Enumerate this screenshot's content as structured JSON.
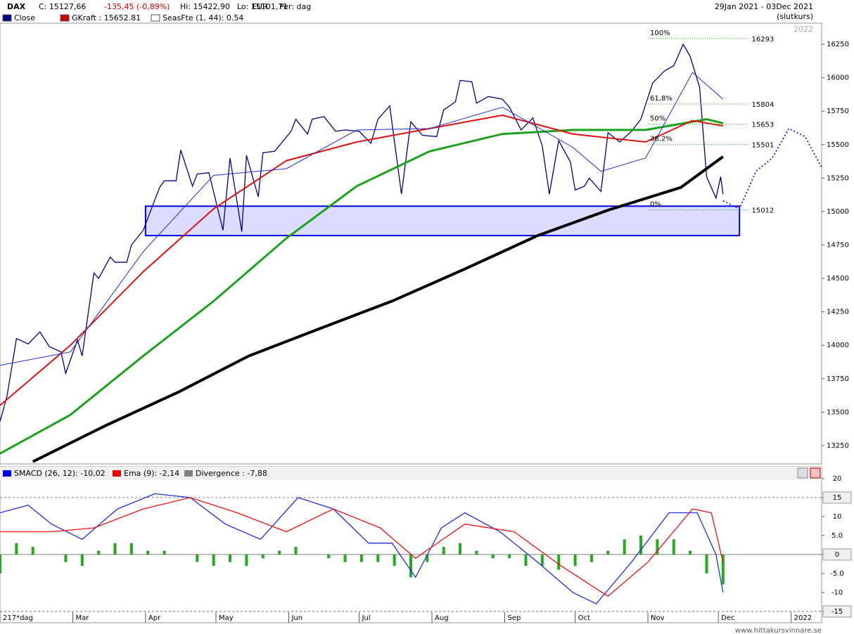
{
  "header": {
    "symbol": "DAX",
    "close": "C: 15127,66",
    "change": "-135,45 (-0,89%)",
    "high": "Hi: 15422,90",
    "low": "Lo: 15101,71",
    "currency": "EUR",
    "period": "Per: dag",
    "range": "29Jan 2021 - 03Dec 2021",
    "mode": "(slutkurs)",
    "year": "2022",
    "footer": "www.hittakursvinnare.se",
    "legend": [
      {
        "label": "Close",
        "color": "#000080"
      },
      {
        "label": "GKraft : 15652.81",
        "color": "#cc0000"
      },
      {
        "label": "SeasFte (1, 44): 0.54",
        "color": "#ffffff"
      }
    ]
  },
  "chart_data": [
    {
      "type": "line",
      "xlim": [
        "2021-01-29",
        "2022-01-14"
      ],
      "ylim": [
        13113,
        16408
      ],
      "xticks": [
        {
          "value": "2021-01-29",
          "label": "217*dag"
        },
        {
          "value": "2021-03-01",
          "label": "Mar"
        },
        {
          "value": "2021-04-01",
          "label": "Apr"
        },
        {
          "value": "2021-05-01",
          "label": "May"
        },
        {
          "value": "2021-06-01",
          "label": "Jun"
        },
        {
          "value": "2021-07-01",
          "label": "Jul"
        },
        {
          "value": "2021-08-01",
          "label": "Aug"
        },
        {
          "value": "2021-09-01",
          "label": "Sep"
        },
        {
          "value": "2021-10-01",
          "label": "Oct"
        },
        {
          "value": "2021-11-01",
          "label": "Nov"
        },
        {
          "value": "2021-12-01",
          "label": "Dec"
        },
        {
          "value": "2022-01-01",
          "label": "2022"
        }
      ],
      "yticks": [
        13250,
        13500,
        13750,
        14000,
        14250,
        14500,
        14750,
        15000,
        15250,
        15500,
        15750,
        16000,
        16250
      ],
      "series": [
        {
          "name": "Close",
          "color": "#000080",
          "x": [
            "2021-01-29",
            "2021-02-01",
            "2021-02-05",
            "2021-02-10",
            "2021-02-15",
            "2021-02-19",
            "2021-02-24",
            "2021-02-26",
            "2021-03-03",
            "2021-03-05",
            "2021-03-10",
            "2021-03-12",
            "2021-03-17",
            "2021-03-19",
            "2021-03-24",
            "2021-03-26",
            "2021-03-31",
            "2021-04-07",
            "2021-04-09",
            "2021-04-14",
            "2021-04-16",
            "2021-04-21",
            "2021-04-23",
            "2021-04-28",
            "2021-05-04",
            "2021-05-07",
            "2021-05-12",
            "2021-05-14",
            "2021-05-19",
            "2021-05-21",
            "2021-05-26",
            "2021-06-02",
            "2021-06-04",
            "2021-06-09",
            "2021-06-11",
            "2021-06-16",
            "2021-06-21",
            "2021-06-25",
            "2021-07-01",
            "2021-07-06",
            "2021-07-09",
            "2021-07-14",
            "2021-07-19",
            "2021-07-23",
            "2021-07-28",
            "2021-08-03",
            "2021-08-06",
            "2021-08-11",
            "2021-08-13",
            "2021-08-18",
            "2021-08-20",
            "2021-08-25",
            "2021-08-31",
            "2021-09-03",
            "2021-09-08",
            "2021-09-13",
            "2021-09-17",
            "2021-09-20",
            "2021-09-24",
            "2021-09-29",
            "2021-10-01",
            "2021-10-05",
            "2021-10-07",
            "2021-10-12",
            "2021-10-15",
            "2021-10-20",
            "2021-10-25",
            "2021-10-29",
            "2021-11-03",
            "2021-11-08",
            "2021-11-12",
            "2021-11-16",
            "2021-11-19",
            "2021-11-23",
            "2021-11-26",
            "2021-11-30",
            "2021-12-02",
            "2021-12-03"
          ],
          "values": [
            13430,
            13620,
            14050,
            14010,
            14100,
            13990,
            13950,
            13790,
            14040,
            13920,
            14540,
            14500,
            14660,
            14620,
            14620,
            14750,
            14860,
            15180,
            15230,
            15230,
            15460,
            15190,
            15280,
            15290,
            14860,
            15400,
            14850,
            15420,
            15110,
            15440,
            15450,
            15600,
            15690,
            15580,
            15690,
            15710,
            15600,
            15610,
            15600,
            15510,
            15690,
            15790,
            15130,
            15670,
            15570,
            15560,
            15760,
            15820,
            15980,
            15970,
            15810,
            15860,
            15840,
            15780,
            15610,
            15700,
            15490,
            15130,
            15530,
            15370,
            15160,
            15190,
            15250,
            15150,
            15590,
            15520,
            15600,
            15690,
            15960,
            16050,
            16090,
            16250,
            16160,
            15930,
            15260,
            15100,
            15260,
            15130
          ]
        },
        {
          "color": "#000000",
          "width": 4,
          "x": [
            "2021-02-12",
            "2021-03-15",
            "2021-04-15",
            "2021-05-15",
            "2021-06-15",
            "2021-07-15",
            "2021-08-15",
            "2021-09-15",
            "2021-10-15",
            "2021-11-15",
            "2021-12-03"
          ],
          "values": [
            13130,
            13400,
            13650,
            13920,
            14130,
            14330,
            14570,
            14820,
            15010,
            15180,
            15410
          ]
        },
        {
          "color": "#1aa31a",
          "width": 3,
          "x": [
            "2021-01-29",
            "2021-02-28",
            "2021-03-31",
            "2021-04-30",
            "2021-05-31",
            "2021-06-30",
            "2021-07-31",
            "2021-08-31",
            "2021-09-30",
            "2021-10-31",
            "2021-11-26",
            "2021-12-03"
          ],
          "values": [
            13190,
            13480,
            13920,
            14330,
            14800,
            15190,
            15450,
            15580,
            15610,
            15610,
            15690,
            15660
          ]
        },
        {
          "color": "#e01010",
          "width": 2,
          "x": [
            "2021-01-29",
            "2021-02-28",
            "2021-03-31",
            "2021-04-30",
            "2021-05-31",
            "2021-06-30",
            "2021-07-31",
            "2021-08-31",
            "2021-09-30",
            "2021-10-31",
            "2021-11-20",
            "2021-12-03"
          ],
          "values": [
            13550,
            14000,
            14550,
            15020,
            15380,
            15520,
            15620,
            15720,
            15580,
            15520,
            15680,
            15640
          ]
        },
        {
          "color": "#2030d0",
          "width": 1,
          "x": [
            "2021-01-29",
            "2021-02-28",
            "2021-03-31",
            "2021-04-30",
            "2021-05-31",
            "2021-06-30",
            "2021-07-31",
            "2021-08-31",
            "2021-09-30",
            "2021-10-12",
            "2021-10-31",
            "2021-11-20",
            "2021-12-03"
          ],
          "values": [
            13850,
            13950,
            14700,
            15270,
            15320,
            15610,
            15620,
            15780,
            15480,
            15300,
            15400,
            16040,
            15840
          ]
        },
        {
          "color": "#2030d0",
          "width": 2,
          "dash": true,
          "x": [
            "2021-12-03",
            "2021-12-10",
            "2021-12-17",
            "2021-12-24",
            "2021-12-31",
            "2022-01-07",
            "2022-01-14"
          ],
          "values": [
            15080,
            15020,
            15300,
            15400,
            15620,
            15560,
            15330
          ]
        }
      ],
      "zone": {
        "from": "2021-04-01",
        "to": "2021-12-10",
        "low": 14820,
        "high": 15040
      },
      "fib": {
        "from": "2021-11-01",
        "to": "2021-12-14",
        "levels": [
          {
            "label": "100%",
            "value": 16293
          },
          {
            "label": "61,8%",
            "value": 15804
          },
          {
            "label": "50%",
            "value": 15653
          },
          {
            "label": "38,2%",
            "value": 15501
          },
          {
            "label": "0%",
            "value": 15012
          }
        ]
      }
    },
    {
      "type": "macd",
      "xlim": [
        "2021-01-29",
        "2022-01-14"
      ],
      "ylim": [
        -15.2,
        19.6
      ],
      "legend": [
        {
          "label": "SMACD (26, 12): -10,02",
          "color": "#0000ee"
        },
        {
          "label": "Ema (9): -2,14",
          "color": "#ee0000"
        },
        {
          "label": "Divergence : -7,88",
          "color": "#808080"
        }
      ],
      "yticks": [
        20,
        15,
        10,
        {
          "value": 5,
          "label": "5.0"
        },
        0,
        {
          "value": -5,
          "label": "-5.0"
        },
        -10,
        -15
      ],
      "boxed": [
        15,
        0,
        -15
      ],
      "series": [
        {
          "color": "#2030e0",
          "x": [
            "2021-01-29",
            "2021-02-10",
            "2021-02-20",
            "2021-03-05",
            "2021-03-20",
            "2021-04-05",
            "2021-04-20",
            "2021-05-05",
            "2021-05-20",
            "2021-06-05",
            "2021-06-20",
            "2021-07-05",
            "2021-07-15",
            "2021-07-25",
            "2021-08-05",
            "2021-08-15",
            "2021-08-30",
            "2021-09-15",
            "2021-09-30",
            "2021-10-10",
            "2021-10-25",
            "2021-11-10",
            "2021-11-22",
            "2021-11-30",
            "2021-12-03"
          ],
          "values": [
            11,
            13,
            8,
            4,
            12,
            16,
            15,
            8,
            4,
            15,
            12,
            3,
            3,
            -6,
            7,
            11,
            6,
            -2,
            -10,
            -13,
            -2,
            11,
            11,
            0,
            -10
          ]
        },
        {
          "color": "#ee1010",
          "x": [
            "2021-01-29",
            "2021-02-20",
            "2021-03-10",
            "2021-03-31",
            "2021-04-20",
            "2021-05-10",
            "2021-05-31",
            "2021-06-20",
            "2021-07-10",
            "2021-07-25",
            "2021-08-15",
            "2021-09-05",
            "2021-09-25",
            "2021-10-15",
            "2021-11-01",
            "2021-11-20",
            "2021-11-28",
            "2021-12-03"
          ],
          "values": [
            6,
            6,
            7,
            12,
            15,
            11,
            6,
            12,
            7,
            -1,
            8,
            6,
            -3,
            -11,
            -2,
            12,
            11,
            -2
          ]
        }
      ],
      "histogram": {
        "color": "#22aa22",
        "x": [
          "2021-01-29",
          "2021-02-05",
          "2021-02-12",
          "2021-02-19",
          "2021-02-26",
          "2021-03-05",
          "2021-03-12",
          "2021-03-19",
          "2021-03-26",
          "2021-04-02",
          "2021-04-09",
          "2021-04-16",
          "2021-04-23",
          "2021-04-30",
          "2021-05-07",
          "2021-05-14",
          "2021-05-21",
          "2021-05-28",
          "2021-06-04",
          "2021-06-11",
          "2021-06-18",
          "2021-06-25",
          "2021-07-02",
          "2021-07-09",
          "2021-07-16",
          "2021-07-23",
          "2021-07-30",
          "2021-08-06",
          "2021-08-13",
          "2021-08-20",
          "2021-08-27",
          "2021-09-03",
          "2021-09-10",
          "2021-09-17",
          "2021-09-24",
          "2021-10-01",
          "2021-10-08",
          "2021-10-15",
          "2021-10-22",
          "2021-10-29",
          "2021-11-05",
          "2021-11-12",
          "2021-11-19",
          "2021-11-26",
          "2021-12-03"
        ],
        "values": [
          -5,
          3,
          2,
          0,
          -2,
          -3,
          1,
          3,
          3,
          1,
          1,
          0,
          -2,
          -3,
          -2,
          -3,
          -1,
          1,
          2,
          0,
          -1,
          -2,
          -2,
          -2,
          -3,
          -6,
          -2,
          2,
          3,
          1,
          -1,
          -1,
          -3,
          -3,
          -4,
          -3,
          -2,
          1,
          4,
          5,
          4,
          4,
          1,
          -5,
          -7.88
        ]
      }
    }
  ]
}
